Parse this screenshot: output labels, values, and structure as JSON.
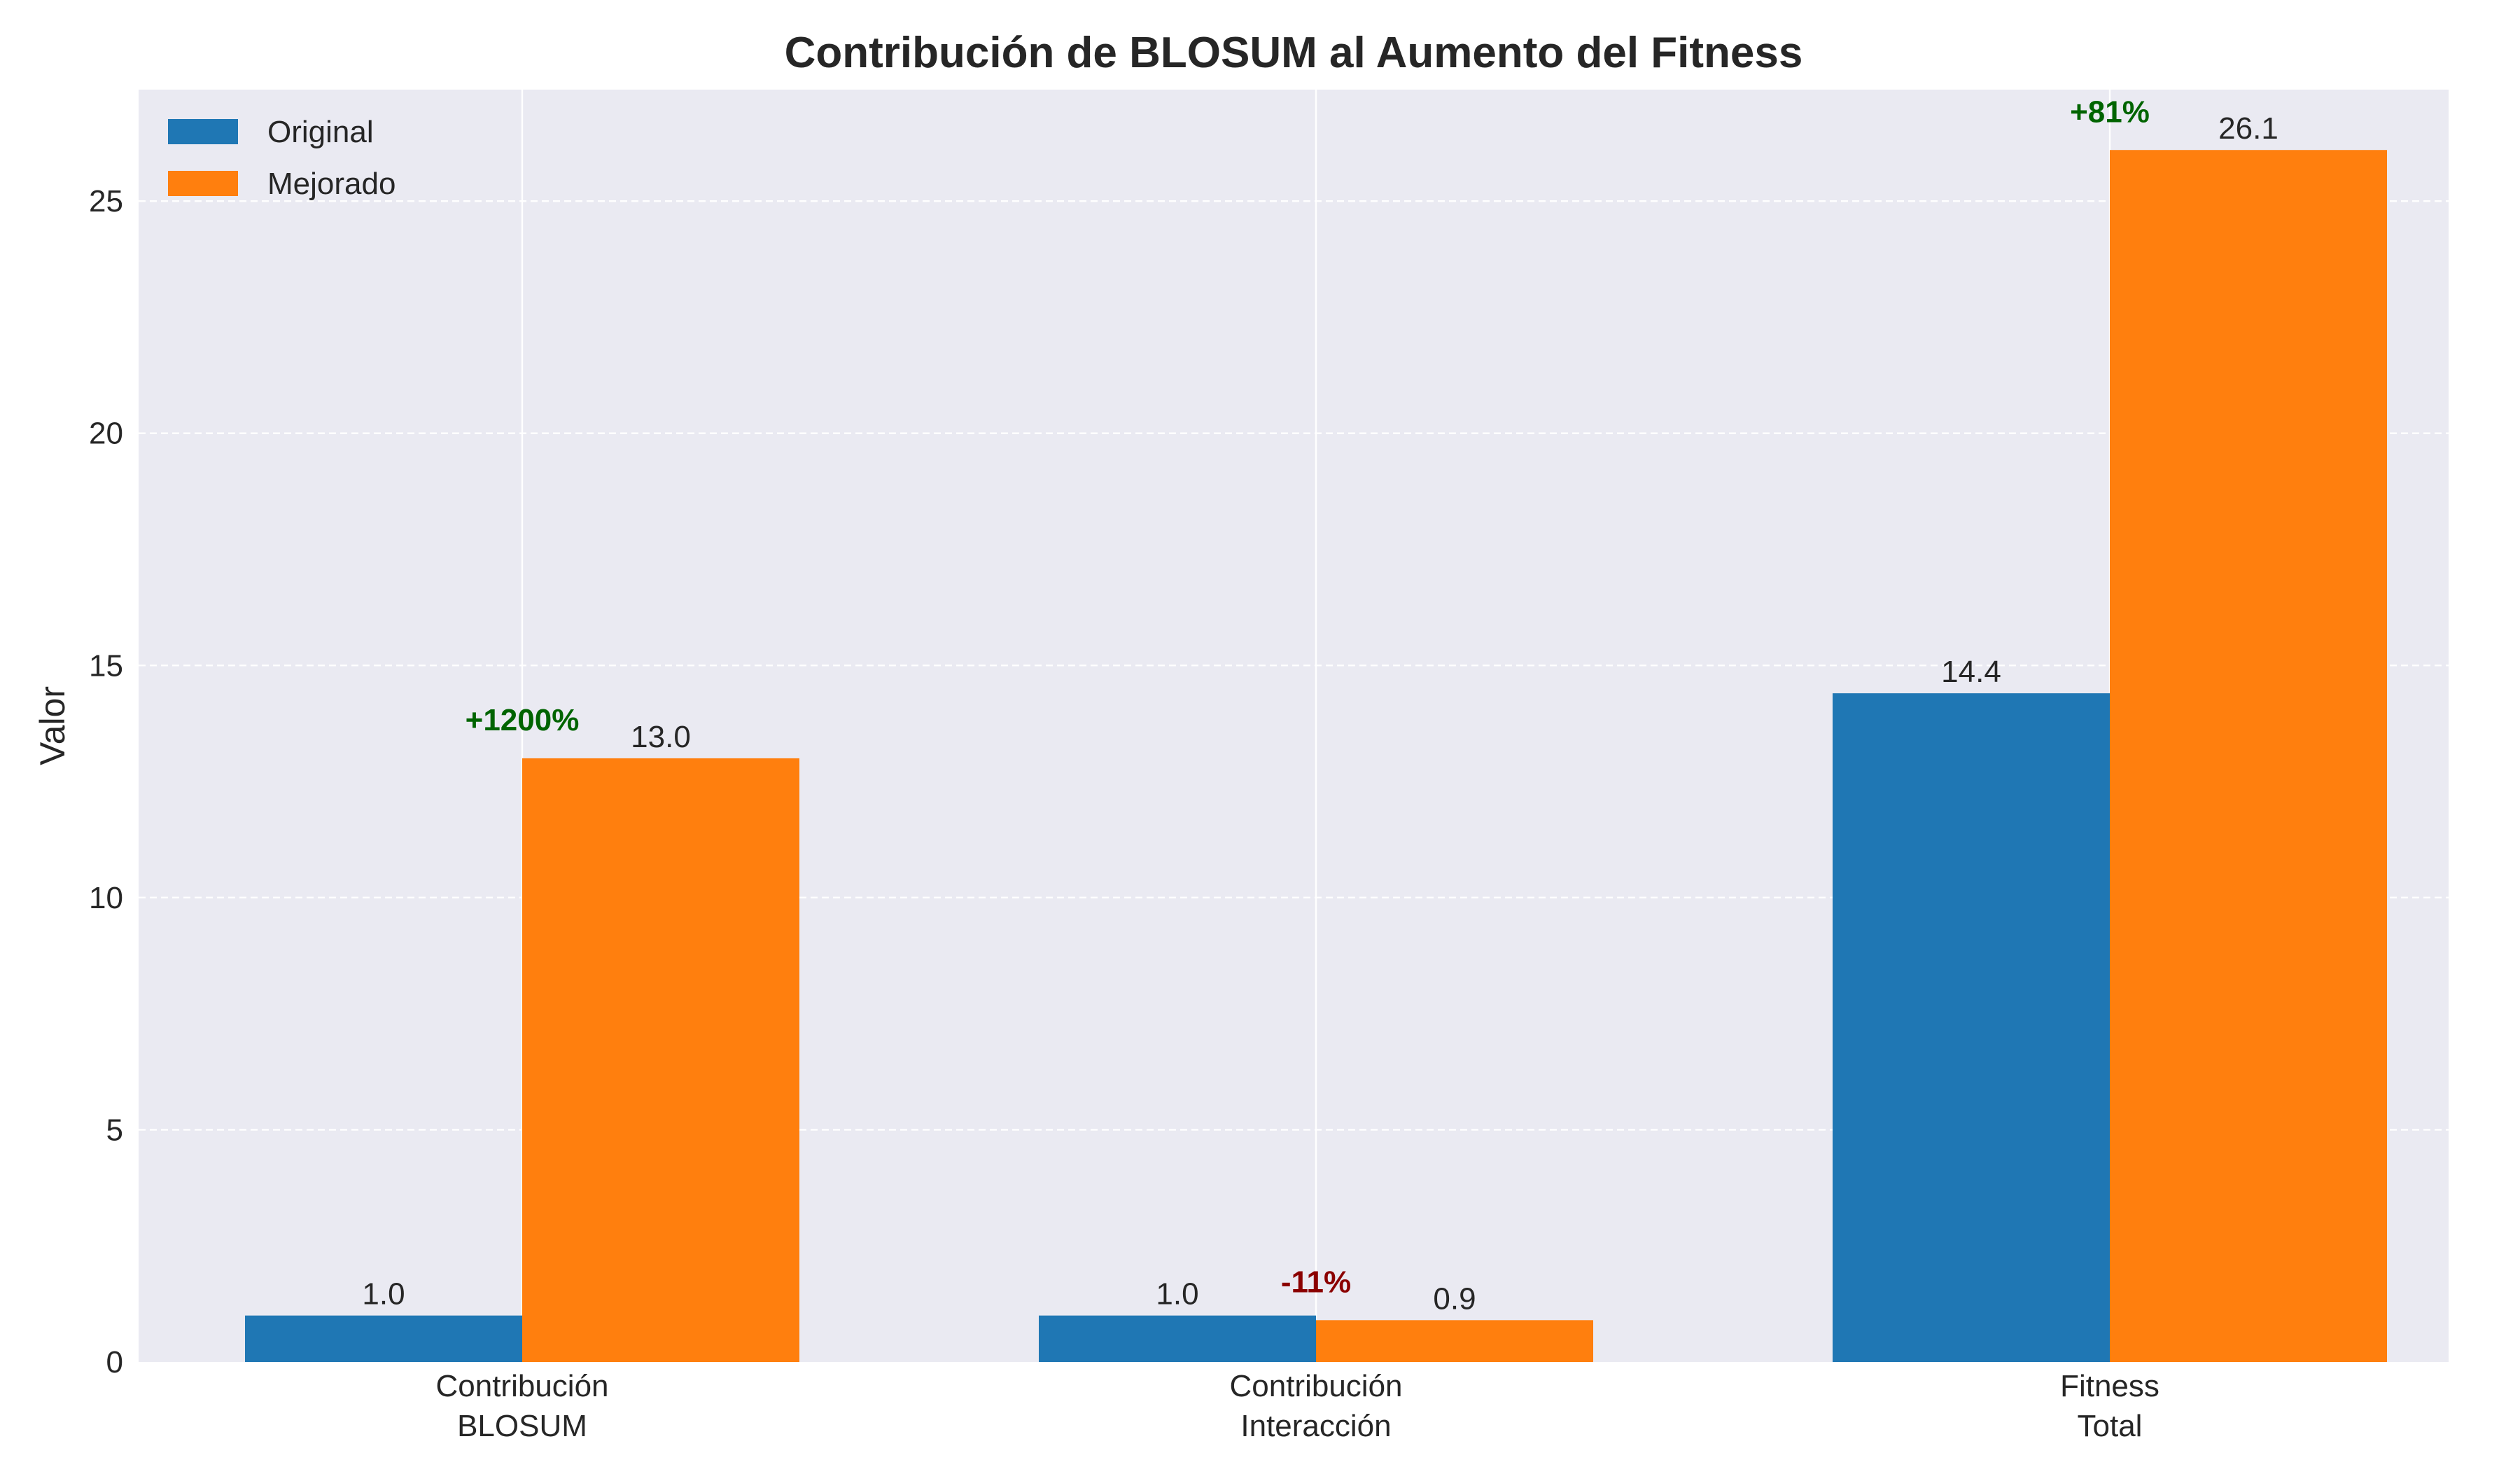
{
  "chart_data": {
    "type": "bar",
    "title": "Contribución de BLOSUM al Aumento del Fitness",
    "xlabel": "",
    "ylabel": "Valor",
    "ylim": [
      0,
      27.4
    ],
    "yticks": [
      0,
      5,
      10,
      15,
      20,
      25
    ],
    "ytick_labels": [
      "0",
      "5",
      "10",
      "15",
      "20",
      "25"
    ],
    "grid": true,
    "legend_position": "top-left",
    "categories": [
      [
        "Contribución",
        "BLOSUM"
      ],
      [
        "Contribución",
        "Interacción"
      ],
      [
        "Fitness",
        "Total"
      ]
    ],
    "series": [
      {
        "name": "Original",
        "color": "#1f77b4",
        "values": [
          1.0,
          1.0,
          14.4
        ],
        "labels": [
          "1.0",
          "1.0",
          "14.4"
        ]
      },
      {
        "name": "Mejorado",
        "color": "#ff7f0e",
        "values": [
          13.0,
          0.9,
          26.1
        ],
        "labels": [
          "13.0",
          "0.9",
          "26.1"
        ]
      }
    ],
    "annotations": [
      {
        "text": "+1200%",
        "category": 0,
        "y": 13.6,
        "color": "#006400"
      },
      {
        "text": "-11%",
        "category": 1,
        "y": 1.5,
        "color": "#8b0000"
      },
      {
        "text": "+81%",
        "category": 2,
        "y": 26.7,
        "color": "#006400"
      }
    ],
    "colors": {
      "plot_background": "#eaeaf2",
      "grid": "#ffffff",
      "text": "#262626"
    }
  }
}
